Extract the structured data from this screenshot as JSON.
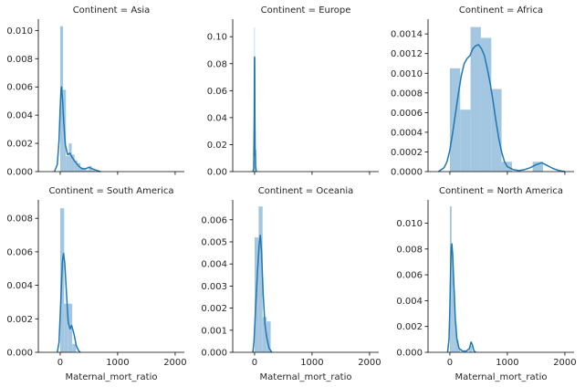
{
  "colors": {
    "hist_fill": "#a4c7e1",
    "kde_line": "#1f77b4",
    "axis": "#000000",
    "text": "#262626"
  },
  "chart_data": [
    {
      "type": "bar",
      "title": "Continent = Asia",
      "xlabel": "",
      "ylabel": "",
      "xlim": [
        -380,
        2160
      ],
      "ylim": [
        0,
        0.0108
      ],
      "xticks": [
        0,
        1000,
        2000
      ],
      "xtick_labels": [
        "",
        "",
        ""
      ],
      "yticks": [
        0,
        0.002,
        0.004,
        0.006,
        0.008,
        0.01
      ],
      "ytick_labels": [
        "0.000",
        "0.002",
        "0.004",
        "0.006",
        "0.008",
        "0.010"
      ],
      "bins": [
        [
          0,
          50,
          0.0103
        ],
        [
          50,
          100,
          0.0058
        ],
        [
          100,
          150,
          0.0011
        ],
        [
          150,
          200,
          0.002
        ],
        [
          200,
          250,
          0.0012
        ],
        [
          250,
          300,
          0.0008
        ],
        [
          300,
          350,
          0.0006
        ],
        [
          350,
          400,
          0.0003
        ],
        [
          400,
          450,
          0.0002
        ],
        [
          450,
          500,
          0.0001
        ],
        [
          500,
          550,
          0.0004
        ],
        [
          550,
          600,
          0.0001
        ]
      ],
      "kde": [
        [
          -100,
          0
        ],
        [
          -50,
          0.0005
        ],
        [
          -20,
          0.0022
        ],
        [
          0,
          0.0045
        ],
        [
          15,
          0.0058
        ],
        [
          25,
          0.006
        ],
        [
          40,
          0.0052
        ],
        [
          60,
          0.0036
        ],
        [
          90,
          0.0019
        ],
        [
          130,
          0.0012
        ],
        [
          170,
          0.0013
        ],
        [
          210,
          0.001
        ],
        [
          260,
          0.0007
        ],
        [
          320,
          0.0004
        ],
        [
          380,
          0.0002
        ],
        [
          440,
          0.0002
        ],
        [
          500,
          0.0003
        ],
        [
          560,
          0.0002
        ],
        [
          620,
          0.0001
        ],
        [
          700,
          0
        ]
      ]
    },
    {
      "type": "bar",
      "title": "Continent = Europe",
      "xlabel": "",
      "ylabel": "",
      "xlim": [
        -380,
        2160
      ],
      "ylim": [
        0,
        0.113
      ],
      "xticks": [
        0,
        1000,
        2000
      ],
      "xtick_labels": [
        "",
        "",
        ""
      ],
      "yticks": [
        0,
        0.02,
        0.04,
        0.06,
        0.08,
        0.1
      ],
      "ytick_labels": [
        "0.00",
        "0.02",
        "0.04",
        "0.06",
        "0.08",
        "0.10"
      ],
      "bins": [
        [
          -5,
          0,
          0.107
        ],
        [
          0,
          5,
          0.085
        ],
        [
          5,
          10,
          0.015
        ],
        [
          10,
          15,
          0.016
        ]
      ],
      "kde": [
        [
          -30,
          0
        ],
        [
          -15,
          0.002
        ],
        [
          -6,
          0.04
        ],
        [
          -2,
          0.084
        ],
        [
          2,
          0.085
        ],
        [
          6,
          0.04
        ],
        [
          10,
          0.012
        ],
        [
          14,
          0.016
        ],
        [
          18,
          0.004
        ],
        [
          30,
          0
        ]
      ]
    },
    {
      "type": "bar",
      "title": "Continent = Africa",
      "xlabel": "",
      "ylabel": "",
      "xlim": [
        -380,
        2160
      ],
      "ylim": [
        0,
        0.00155
      ],
      "xticks": [
        0,
        1000,
        2000
      ],
      "xtick_labels": [
        "",
        "",
        ""
      ],
      "yticks": [
        0,
        0.0002,
        0.0004,
        0.0006,
        0.0008,
        0.001,
        0.0012,
        0.0014
      ],
      "ytick_labels": [
        "0.0000",
        "0.0002",
        "0.0004",
        "0.0006",
        "0.0008",
        "0.0010",
        "0.0012",
        "0.0014"
      ],
      "bins": [
        [
          0,
          180,
          0.00105
        ],
        [
          180,
          360,
          0.00063
        ],
        [
          360,
          540,
          0.00147
        ],
        [
          540,
          720,
          0.00136
        ],
        [
          720,
          900,
          0.00084
        ],
        [
          900,
          1080,
          0.0001
        ],
        [
          1440,
          1620,
          0.0001
        ]
      ],
      "kde": [
        [
          -200,
          0
        ],
        [
          -150,
          2e-05
        ],
        [
          -100,
          4e-05
        ],
        [
          -50,
          0.0001
        ],
        [
          0,
          0.00022
        ],
        [
          50,
          0.0004
        ],
        [
          100,
          0.0006
        ],
        [
          150,
          0.0008
        ],
        [
          200,
          0.00098
        ],
        [
          250,
          0.0011
        ],
        [
          300,
          0.00115
        ],
        [
          350,
          0.00118
        ],
        [
          400,
          0.00125
        ],
        [
          450,
          0.00128
        ],
        [
          500,
          0.00129
        ],
        [
          550,
          0.00125
        ],
        [
          600,
          0.00118
        ],
        [
          650,
          0.00105
        ],
        [
          700,
          0.0009
        ],
        [
          750,
          0.00072
        ],
        [
          800,
          0.00052
        ],
        [
          850,
          0.00034
        ],
        [
          900,
          0.0002
        ],
        [
          950,
          0.0001
        ],
        [
          1000,
          5e-05
        ],
        [
          1100,
          2e-05
        ],
        [
          1200,
          1e-05
        ],
        [
          1300,
          2e-05
        ],
        [
          1400,
          4e-05
        ],
        [
          1500,
          7e-05
        ],
        [
          1600,
          9e-05
        ],
        [
          1700,
          6e-05
        ],
        [
          1800,
          3e-05
        ],
        [
          1900,
          1e-05
        ],
        [
          2000,
          0
        ]
      ]
    },
    {
      "type": "bar",
      "title": "Continent = South America",
      "xlabel": "Maternal_mort_ratio",
      "ylabel": "",
      "xlim": [
        -380,
        2160
      ],
      "ylim": [
        0,
        0.0091
      ],
      "xticks": [
        0,
        1000,
        2000
      ],
      "xtick_labels": [
        "0",
        "1000",
        "2000"
      ],
      "yticks": [
        0,
        0.002,
        0.004,
        0.006,
        0.008
      ],
      "ytick_labels": [
        "0.000",
        "0.002",
        "0.004",
        "0.006",
        "0.008"
      ],
      "bins": [
        [
          0,
          70,
          0.0086
        ],
        [
          70,
          140,
          0.0029
        ],
        [
          140,
          210,
          0.0029
        ],
        [
          210,
          280,
          0.0005
        ]
      ],
      "kde": [
        [
          -50,
          0
        ],
        [
          -20,
          0.0006
        ],
        [
          10,
          0.003
        ],
        [
          40,
          0.0055
        ],
        [
          60,
          0.0059
        ],
        [
          80,
          0.0053
        ],
        [
          110,
          0.0035
        ],
        [
          140,
          0.0018
        ],
        [
          170,
          0.0014
        ],
        [
          200,
          0.0016
        ],
        [
          240,
          0.0011
        ],
        [
          280,
          0.0004
        ],
        [
          320,
          0.0001
        ],
        [
          350,
          0
        ]
      ]
    },
    {
      "type": "bar",
      "title": "Continent = Oceania",
      "xlabel": "Maternal_mort_ratio",
      "ylabel": "",
      "xlim": [
        -380,
        2160
      ],
      "ylim": [
        0,
        0.0069
      ],
      "xticks": [
        0,
        1000,
        2000
      ],
      "xtick_labels": [
        "0",
        "1000",
        "2000"
      ],
      "yticks": [
        0,
        0.001,
        0.002,
        0.003,
        0.004,
        0.005,
        0.006
      ],
      "ytick_labels": [
        "0.000",
        "0.001",
        "0.002",
        "0.003",
        "0.004",
        "0.005",
        "0.006"
      ],
      "bins": [
        [
          0,
          70,
          0.0052
        ],
        [
          70,
          140,
          0.0066
        ],
        [
          140,
          210,
          0.0016
        ],
        [
          210,
          280,
          0.0014
        ]
      ],
      "kde": [
        [
          -30,
          0
        ],
        [
          -10,
          0.0005
        ],
        [
          20,
          0.0021
        ],
        [
          50,
          0.0036
        ],
        [
          80,
          0.0049
        ],
        [
          100,
          0.0053
        ],
        [
          120,
          0.0046
        ],
        [
          150,
          0.0026
        ],
        [
          180,
          0.0013
        ],
        [
          210,
          0.0007
        ],
        [
          250,
          0.0002
        ],
        [
          300,
          0
        ]
      ]
    },
    {
      "type": "bar",
      "title": "Continent = North America",
      "xlabel": "Maternal_mort_ratio",
      "ylabel": "",
      "xlim": [
        -380,
        2160
      ],
      "ylim": [
        0,
        0.0118
      ],
      "xticks": [
        0,
        1000,
        2000
      ],
      "xtick_labels": [
        "0",
        "1000",
        "2000"
      ],
      "yticks": [
        0,
        0.002,
        0.004,
        0.006,
        0.008,
        0.01
      ],
      "ytick_labels": [
        "0.000",
        "0.002",
        "0.004",
        "0.006",
        "0.008",
        "0.010"
      ],
      "bins": [
        [
          0,
          30,
          0.0113
        ],
        [
          30,
          60,
          0.0078
        ],
        [
          60,
          90,
          0.0048
        ],
        [
          90,
          120,
          0.0022
        ],
        [
          120,
          150,
          0.0009
        ],
        [
          150,
          180,
          0.0003
        ],
        [
          330,
          360,
          0.0003
        ],
        [
          360,
          390,
          0.0005
        ]
      ],
      "kde": [
        [
          -40,
          0
        ],
        [
          -15,
          0.001
        ],
        [
          0,
          0.0035
        ],
        [
          15,
          0.0068
        ],
        [
          25,
          0.0082
        ],
        [
          35,
          0.0084
        ],
        [
          50,
          0.0074
        ],
        [
          70,
          0.0052
        ],
        [
          95,
          0.0026
        ],
        [
          120,
          0.0011
        ],
        [
          160,
          0.0003
        ],
        [
          220,
          0.0001
        ],
        [
          290,
          0.0001
        ],
        [
          340,
          0.0003
        ],
        [
          370,
          0.0008
        ],
        [
          390,
          0.0006
        ],
        [
          420,
          0.0001
        ],
        [
          450,
          0
        ]
      ]
    }
  ]
}
